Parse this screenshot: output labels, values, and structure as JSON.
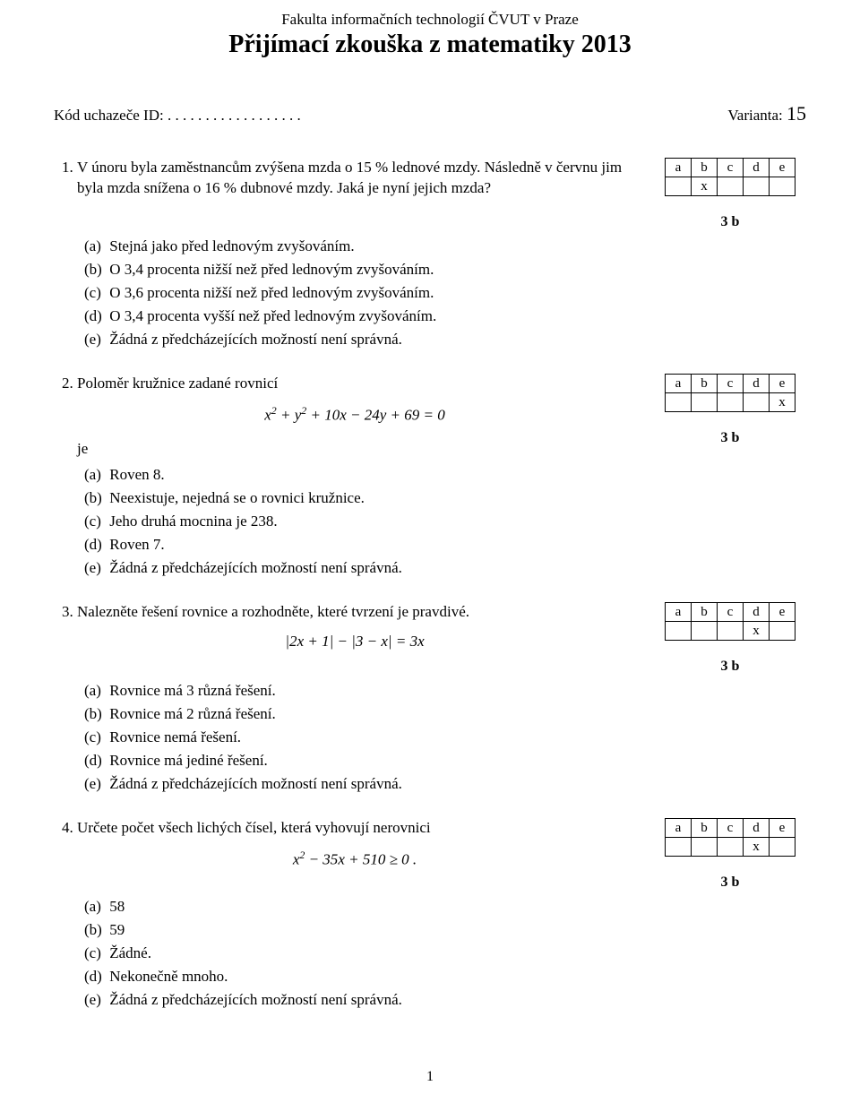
{
  "header": {
    "institution": "Fakulta informačních technologií ČVUT v Praze",
    "title": "Přijímací zkouška z matematiky 2013"
  },
  "meta": {
    "candidate_label": "Kód uchazeče ID:",
    "dots": ". . . . . . . . . . . . . . . . . .",
    "variant_label": "Varianta:",
    "variant_value": "15"
  },
  "answer_grid": {
    "headers": [
      "a",
      "b",
      "c",
      "d",
      "e"
    ],
    "points_label": "3 b"
  },
  "questions": [
    {
      "number": "1.",
      "text": "V únoru byla zaměstnancům zvýšena mzda o 15 % lednové mzdy. Následně v červnu jim byla mzda snížena o 16 % dubnové mzdy. Jaká je nyní jejich mzda?",
      "answer_col": 1,
      "equation_html": "",
      "trailing": "",
      "leading": "",
      "options": [
        "Stejná jako před lednovým zvyšováním.",
        "O 3,4 procenta nižší než před lednovým zvyšováním.",
        "O 3,6 procenta nižší než před lednovým zvyšováním.",
        "O 3,4 procenta vyšší než před lednovým zvyšováním.",
        "Žádná z předcházejících možností není správná."
      ]
    },
    {
      "number": "2.",
      "text": "Poloměr kružnice zadané rovnicí",
      "answer_col": 4,
      "equation_html": "<i>x</i><sup>2</sup> + <i>y</i><sup>2</sup> + 10<i>x</i> − 24<i>y</i> + 69 = 0",
      "trailing": "je",
      "leading": "",
      "options": [
        "Roven 8.",
        "Neexistuje, nejedná se o rovnici kružnice.",
        "Jeho druhá mocnina je 238.",
        "Roven 7.",
        "Žádná z předcházejících možností není správná."
      ]
    },
    {
      "number": "3.",
      "text": "Nalezněte řešení rovnice a rozhodněte, které tvrzení je pravdivé.",
      "answer_col": 3,
      "equation_html": "|2<i>x</i> + 1| − |3 − <i>x</i>| = 3<i>x</i>",
      "trailing": "",
      "leading": "",
      "options": [
        "Rovnice má 3 různá řešení.",
        "Rovnice má 2 různá řešení.",
        "Rovnice nemá řešení.",
        "Rovnice má jediné řešení.",
        "Žádná z předcházejících možností není správná."
      ]
    },
    {
      "number": "4.",
      "text": "Určete počet všech lichých čísel, která vyhovují nerovnici",
      "answer_col": 3,
      "equation_html": "<i>x</i><sup>2</sup> − 35<i>x</i> + 510 ≥ 0 .",
      "trailing": "",
      "leading": "",
      "options": [
        "58",
        "59",
        "Žádné.",
        "Nekonečně mnoho.",
        "Žádná z předcházejících možností není správná."
      ]
    }
  ],
  "option_labels": [
    "(a)",
    "(b)",
    "(c)",
    "(d)",
    "(e)"
  ],
  "page_number": "1"
}
